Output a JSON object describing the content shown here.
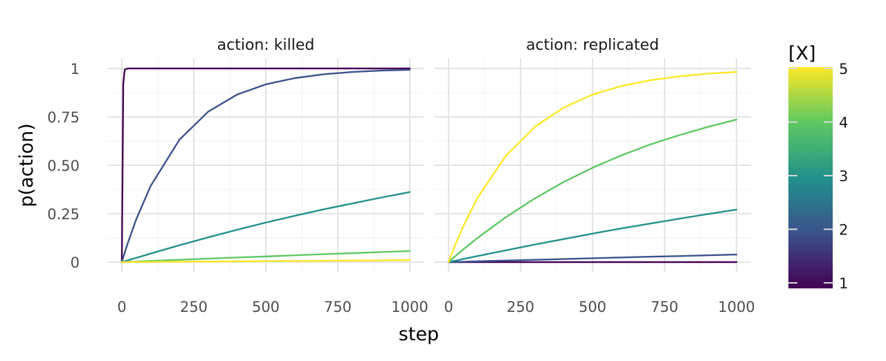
{
  "chart_data": {
    "type": "line",
    "ylabel": "p(action)",
    "xlabel": "step",
    "xlim": [
      0,
      1000
    ],
    "ylim": [
      0,
      1
    ],
    "x_ticks": [
      0,
      250,
      500,
      750,
      1000
    ],
    "x_tick_labels": [
      "0",
      "250",
      "500",
      "750",
      "1000"
    ],
    "y_ticks": [
      0,
      0.25,
      0.5,
      0.75,
      1
    ],
    "y_tick_labels": [
      "0",
      "0.25",
      "0.50",
      "0.75",
      "1"
    ],
    "grid": true,
    "legend": {
      "title": "[X]",
      "type": "colorbar",
      "placement": "right",
      "range": [
        1,
        5
      ],
      "ticks": [
        1,
        2,
        3,
        4,
        5
      ],
      "tick_labels": [
        "1",
        "2",
        "3",
        "4",
        "5"
      ],
      "colors": [
        "#440154",
        "#3b528b",
        "#21918c",
        "#5ec962",
        "#fde725"
      ]
    },
    "x": [
      0,
      5,
      10,
      20,
      50,
      100,
      200,
      300,
      400,
      500,
      600,
      700,
      800,
      900,
      1000
    ],
    "panels": [
      {
        "title": "action: killed",
        "series": [
          {
            "X": 1,
            "color": "#440154",
            "values": [
              0,
              0.92,
              0.994,
              1,
              1,
              1,
              1,
              1,
              1,
              1,
              1,
              1,
              1,
              1,
              1
            ]
          },
          {
            "X": 2,
            "color": "#3b528b",
            "values": [
              0,
              0.025,
              0.049,
              0.095,
              0.221,
              0.393,
              0.632,
              0.777,
              0.865,
              0.918,
              0.95,
              0.97,
              0.982,
              0.989,
              0.993
            ]
          },
          {
            "X": 3,
            "color": "#21918c",
            "values": [
              0,
              0.002,
              0.005,
              0.009,
              0.022,
              0.044,
              0.087,
              0.128,
              0.167,
              0.204,
              0.239,
              0.272,
              0.303,
              0.333,
              0.362
            ]
          },
          {
            "X": 4,
            "color": "#5ec962",
            "values": [
              0,
              0.0003,
              0.0006,
              0.0012,
              0.003,
              0.006,
              0.012,
              0.018,
              0.024,
              0.029,
              0.035,
              0.041,
              0.046,
              0.052,
              0.057
            ]
          },
          {
            "X": 5,
            "color": "#fde725",
            "values": [
              0,
              5e-05,
              0.0001,
              0.0002,
              0.0005,
              0.001,
              0.002,
              0.003,
              0.004,
              0.005,
              0.006,
              0.007,
              0.008,
              0.009,
              0.01
            ]
          }
        ]
      },
      {
        "title": "action: replicated",
        "series": [
          {
            "X": 1,
            "color": "#440154",
            "values": [
              0,
              0,
              0,
              0,
              0,
              0,
              0,
              0,
              0,
              0,
              0,
              0,
              0,
              0,
              0
            ]
          },
          {
            "X": 2,
            "color": "#3b528b",
            "values": [
              0,
              0.0002,
              0.0004,
              0.0008,
              0.002,
              0.004,
              0.008,
              0.012,
              0.016,
              0.02,
              0.024,
              0.028,
              0.031,
              0.035,
              0.039
            ]
          },
          {
            "X": 3,
            "color": "#21918c",
            "values": [
              0,
              0.0016,
              0.0032,
              0.0063,
              0.016,
              0.031,
              0.061,
              0.091,
              0.119,
              0.147,
              0.174,
              0.199,
              0.224,
              0.248,
              0.271
            ]
          },
          {
            "X": 4,
            "color": "#5ec962",
            "values": [
              0,
              0.0067,
              0.0133,
              0.0263,
              0.064,
              0.124,
              0.233,
              0.329,
              0.414,
              0.487,
              0.551,
              0.607,
              0.655,
              0.698,
              0.736
            ]
          },
          {
            "X": 5,
            "color": "#fde725",
            "values": [
              0,
              0.02,
              0.039,
              0.077,
              0.181,
              0.33,
              0.551,
              0.699,
              0.798,
              0.865,
              0.909,
              0.939,
              0.959,
              0.973,
              0.982
            ]
          }
        ]
      }
    ]
  }
}
